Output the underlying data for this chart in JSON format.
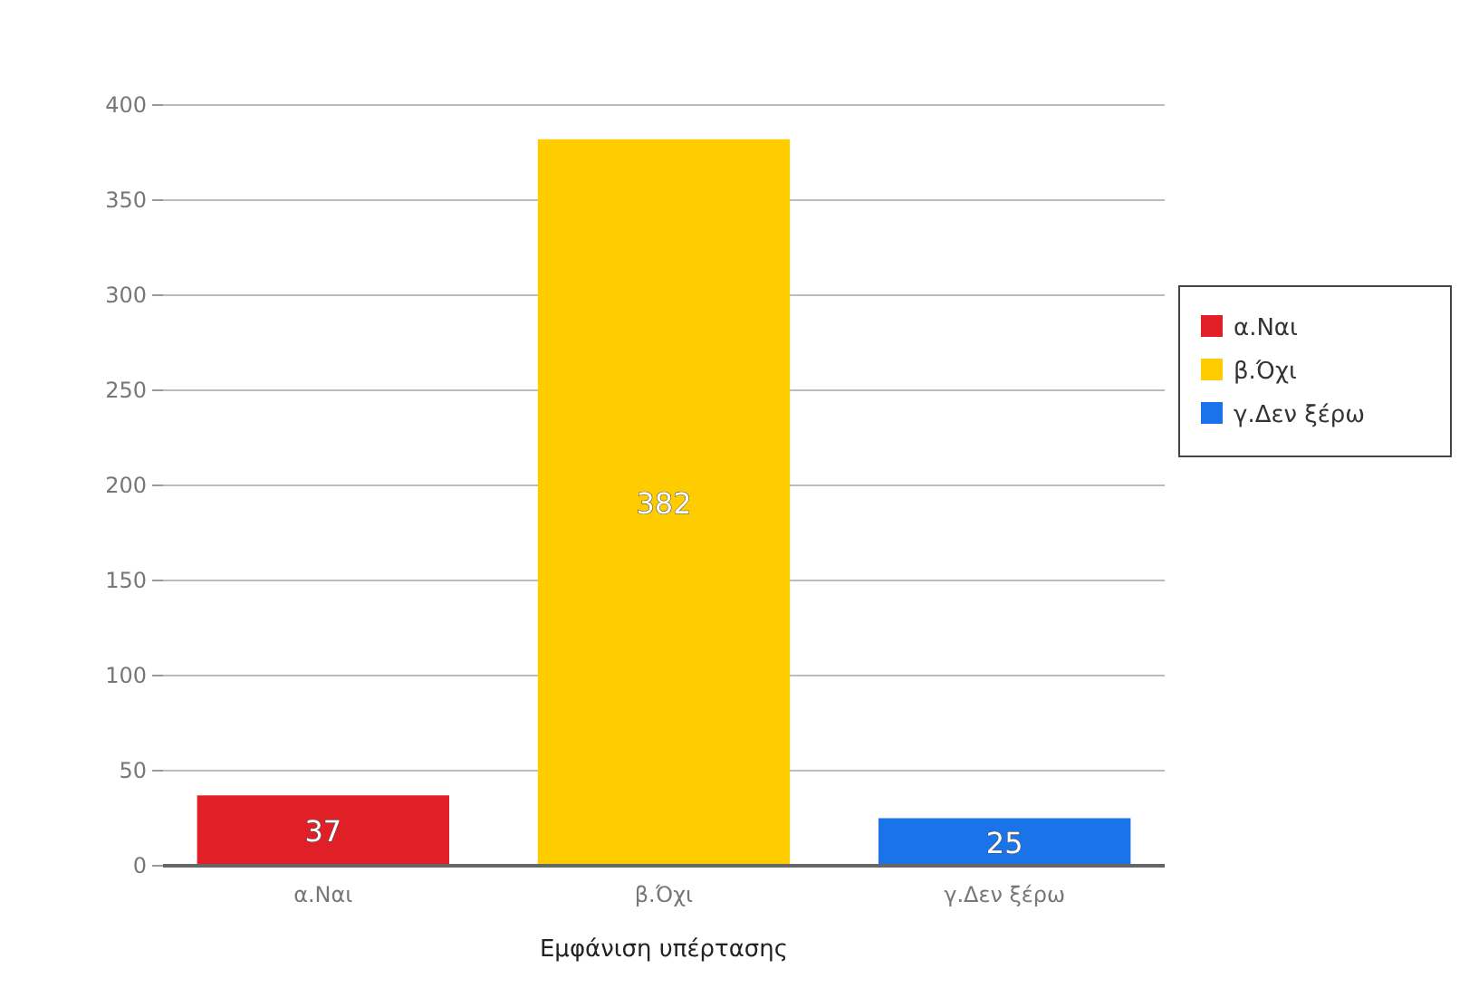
{
  "chart_data": {
    "type": "bar",
    "xlabel": "Εμφάνιση υπέρτασης",
    "categories": [
      "α.Ναι",
      "β.Όχι",
      "γ.Δεν ξέρω"
    ],
    "series": [
      {
        "name": "α.Ναι",
        "color": "#e01f26",
        "values": [
          37,
          null,
          null
        ]
      },
      {
        "name": "β.Όχι",
        "color": "#ffcc00",
        "values": [
          null,
          382,
          null
        ]
      },
      {
        "name": "γ.Δεν ξέρω",
        "color": "#1a73e8",
        "values": [
          null,
          null,
          25
        ]
      }
    ],
    "ylim": [
      0,
      400
    ],
    "yticks": [
      0,
      50,
      100,
      150,
      200,
      250,
      300,
      350,
      400
    ],
    "grid": "y",
    "legend": "right",
    "data_labels": true
  }
}
